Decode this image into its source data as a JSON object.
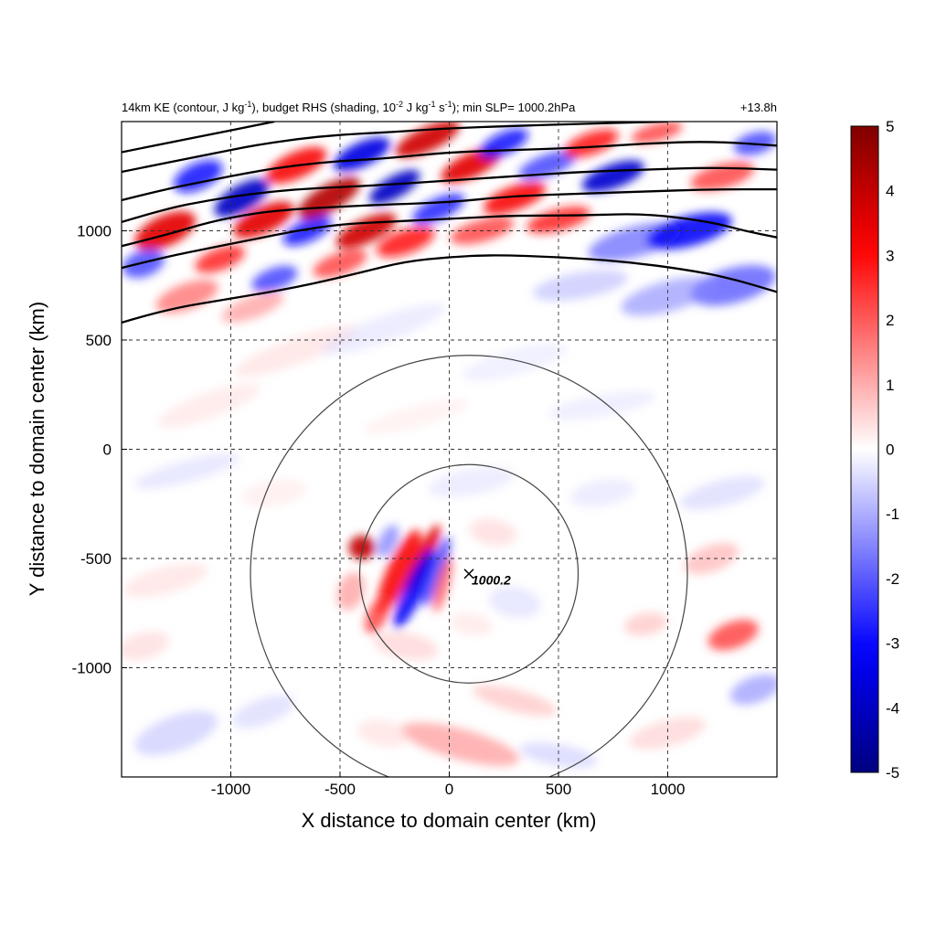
{
  "chart_data": {
    "type": "heatmap",
    "title": {
      "part1": "14km KE (contour, J kg",
      "sup1": "-1",
      "part2": "), budget RHS (shading, 10",
      "sup2": "-2",
      "part3": " J kg",
      "sup3": "-1",
      "part4": " s",
      "sup4": "-1",
      "part5": "); min SLP= 1000.2hPa"
    },
    "forecast_time": "+13.8h",
    "xlabel": "X distance to domain center (km)",
    "ylabel": "Y distance to domain center (km)",
    "xlim": [
      -1500,
      1500
    ],
    "ylim": [
      -1500,
      1500
    ],
    "x_ticks": [
      -1000,
      -500,
      0,
      500,
      1000
    ],
    "y_ticks": [
      -1000,
      -500,
      0,
      500,
      1000
    ],
    "grid": true,
    "colorbar": {
      "min": -5,
      "max": 5,
      "ticks": [
        5,
        4,
        3,
        2,
        1,
        0,
        -1,
        -2,
        -3,
        -4,
        -5
      ],
      "colormap": [
        "#000080",
        "#0000ff",
        "#ffffff",
        "#ff0000",
        "#800000"
      ]
    },
    "storm_center": {
      "x": 90,
      "y": -570,
      "min_slp_label": "1000.2"
    },
    "range_rings_km": [
      500,
      1000
    ],
    "ke_contours": [
      [
        [
          -1500,
          580
        ],
        [
          -1300,
          640
        ],
        [
          -1000,
          690
        ],
        [
          -700,
          740
        ],
        [
          -400,
          810
        ],
        [
          -200,
          860
        ],
        [
          0,
          880
        ],
        [
          200,
          890
        ],
        [
          500,
          880
        ],
        [
          800,
          860
        ],
        [
          1100,
          820
        ],
        [
          1300,
          780
        ],
        [
          1500,
          720
        ]
      ],
      [
        [
          -1500,
          830
        ],
        [
          -1300,
          880
        ],
        [
          -1100,
          920
        ],
        [
          -900,
          960
        ],
        [
          -700,
          1000
        ],
        [
          -500,
          1030
        ],
        [
          -300,
          1040
        ],
        [
          -100,
          1050
        ],
        [
          100,
          1060
        ],
        [
          300,
          1070
        ],
        [
          600,
          1070
        ],
        [
          900,
          1080
        ],
        [
          1200,
          1040
        ],
        [
          1350,
          1000
        ],
        [
          1500,
          970
        ]
      ],
      [
        [
          -1500,
          930
        ],
        [
          -1300,
          980
        ],
        [
          -1100,
          1040
        ],
        [
          -900,
          1080
        ],
        [
          -700,
          1100
        ],
        [
          -500,
          1110
        ],
        [
          -300,
          1120
        ],
        [
          0,
          1130
        ],
        [
          300,
          1160
        ],
        [
          600,
          1170
        ],
        [
          900,
          1180
        ],
        [
          1200,
          1190
        ],
        [
          1500,
          1190
        ]
      ],
      [
        [
          -1500,
          1040
        ],
        [
          -1300,
          1100
        ],
        [
          -1100,
          1140
        ],
        [
          -900,
          1170
        ],
        [
          -700,
          1190
        ],
        [
          -500,
          1200
        ],
        [
          -300,
          1210
        ],
        [
          0,
          1230
        ],
        [
          300,
          1250
        ],
        [
          600,
          1270
        ],
        [
          900,
          1280
        ],
        [
          1200,
          1290
        ],
        [
          1500,
          1280
        ]
      ],
      [
        [
          -1500,
          1140
        ],
        [
          -1300,
          1190
        ],
        [
          -1100,
          1230
        ],
        [
          -900,
          1270
        ],
        [
          -700,
          1300
        ],
        [
          -500,
          1320
        ],
        [
          -300,
          1330
        ],
        [
          0,
          1360
        ],
        [
          300,
          1370
        ],
        [
          600,
          1380
        ],
        [
          900,
          1400
        ],
        [
          1200,
          1410
        ],
        [
          1500,
          1390
        ]
      ],
      [
        [
          -1500,
          1270
        ],
        [
          -1300,
          1310
        ],
        [
          -1100,
          1350
        ],
        [
          -900,
          1390
        ],
        [
          -700,
          1420
        ],
        [
          -500,
          1440
        ],
        [
          -300,
          1450
        ],
        [
          0,
          1470
        ],
        [
          300,
          1480
        ],
        [
          600,
          1490
        ],
        [
          1000,
          1500
        ]
      ],
      [
        [
          -1500,
          1360
        ],
        [
          -1300,
          1400
        ],
        [
          -1100,
          1440
        ],
        [
          -900,
          1480
        ],
        [
          -800,
          1500
        ]
      ]
    ],
    "anomaly_blobs": [
      {
        "x": -1300,
        "y": 1000,
        "rx": 150,
        "ry": 70,
        "v": 3.5,
        "rot": -25
      },
      {
        "x": -1150,
        "y": 1250,
        "rx": 120,
        "ry": 60,
        "v": -3,
        "rot": -25
      },
      {
        "x": -1050,
        "y": 870,
        "rx": 120,
        "ry": 50,
        "v": 2.8,
        "rot": -20
      },
      {
        "x": -950,
        "y": 1150,
        "rx": 140,
        "ry": 60,
        "v": -4,
        "rot": -30
      },
      {
        "x": -850,
        "y": 1050,
        "rx": 150,
        "ry": 60,
        "v": 3.5,
        "rot": -25
      },
      {
        "x": -800,
        "y": 780,
        "rx": 110,
        "ry": 50,
        "v": -2.5,
        "rot": -20
      },
      {
        "x": -700,
        "y": 1300,
        "rx": 150,
        "ry": 60,
        "v": 3.2,
        "rot": -25
      },
      {
        "x": -650,
        "y": 1000,
        "rx": 120,
        "ry": 50,
        "v": -3,
        "rot": -25
      },
      {
        "x": -550,
        "y": 1150,
        "rx": 160,
        "ry": 60,
        "v": 4.2,
        "rot": -30
      },
      {
        "x": -500,
        "y": 850,
        "rx": 130,
        "ry": 50,
        "v": 2.5,
        "rot": -20
      },
      {
        "x": -400,
        "y": 1350,
        "rx": 140,
        "ry": 55,
        "v": -3.5,
        "rot": -25
      },
      {
        "x": -380,
        "y": 1000,
        "rx": 150,
        "ry": 55,
        "v": 3.8,
        "rot": -25
      },
      {
        "x": -250,
        "y": 1200,
        "rx": 130,
        "ry": 50,
        "v": -4,
        "rot": -30
      },
      {
        "x": -200,
        "y": 950,
        "rx": 140,
        "ry": 55,
        "v": 3,
        "rot": -20
      },
      {
        "x": -100,
        "y": 1420,
        "rx": 160,
        "ry": 55,
        "v": 3.8,
        "rot": -25
      },
      {
        "x": -50,
        "y": 1100,
        "rx": 130,
        "ry": 50,
        "v": -2.8,
        "rot": -25
      },
      {
        "x": 100,
        "y": 1300,
        "rx": 150,
        "ry": 55,
        "v": 3.5,
        "rot": -25
      },
      {
        "x": 150,
        "y": 1000,
        "rx": 150,
        "ry": 50,
        "v": 2.5,
        "rot": -15
      },
      {
        "x": 250,
        "y": 1400,
        "rx": 120,
        "ry": 50,
        "v": -3,
        "rot": -25
      },
      {
        "x": 300,
        "y": 1150,
        "rx": 150,
        "ry": 55,
        "v": 3.2,
        "rot": -20
      },
      {
        "x": 450,
        "y": 1300,
        "rx": 140,
        "ry": 50,
        "v": -2.5,
        "rot": -20
      },
      {
        "x": 500,
        "y": 1050,
        "rx": 150,
        "ry": 50,
        "v": 2.8,
        "rot": -15
      },
      {
        "x": 650,
        "y": 1400,
        "rx": 130,
        "ry": 50,
        "v": 3,
        "rot": -20
      },
      {
        "x": 750,
        "y": 1250,
        "rx": 150,
        "ry": 55,
        "v": -3.8,
        "rot": -20
      },
      {
        "x": 850,
        "y": 950,
        "rx": 220,
        "ry": 70,
        "v": -2,
        "rot": -15
      },
      {
        "x": 950,
        "y": 1450,
        "rx": 120,
        "ry": 40,
        "v": 2.5,
        "rot": -15
      },
      {
        "x": 1100,
        "y": 1000,
        "rx": 200,
        "ry": 70,
        "v": -3.2,
        "rot": -15
      },
      {
        "x": 1250,
        "y": 1250,
        "rx": 150,
        "ry": 55,
        "v": 2.5,
        "rot": -15
      },
      {
        "x": 1300,
        "y": 750,
        "rx": 200,
        "ry": 80,
        "v": -2.2,
        "rot": -15
      },
      {
        "x": 1400,
        "y": 1400,
        "rx": 100,
        "ry": 50,
        "v": -2.5,
        "rot": -15
      },
      {
        "x": 1000,
        "y": 700,
        "rx": 220,
        "ry": 70,
        "v": -1.5,
        "rot": -15
      },
      {
        "x": 600,
        "y": 750,
        "rx": 220,
        "ry": 60,
        "v": -1,
        "rot": -10
      },
      {
        "x": -1200,
        "y": 700,
        "rx": 150,
        "ry": 60,
        "v": 2,
        "rot": -20
      },
      {
        "x": -900,
        "y": 650,
        "rx": 150,
        "ry": 50,
        "v": 1.5,
        "rot": -20
      },
      {
        "x": -1400,
        "y": 850,
        "rx": 100,
        "ry": 60,
        "v": -2.5,
        "rot": -20
      },
      {
        "x": -700,
        "y": 450,
        "rx": 300,
        "ry": 60,
        "v": 0.6,
        "rot": -20
      },
      {
        "x": -300,
        "y": 550,
        "rx": 300,
        "ry": 60,
        "v": -0.5,
        "rot": -20
      },
      {
        "x": 300,
        "y": 400,
        "rx": 250,
        "ry": 60,
        "v": -0.4,
        "rot": -15
      },
      {
        "x": -1100,
        "y": 200,
        "rx": 250,
        "ry": 60,
        "v": 0.5,
        "rot": -20
      },
      {
        "x": -1200,
        "y": -100,
        "rx": 250,
        "ry": 50,
        "v": -0.6,
        "rot": -15
      },
      {
        "x": -1300,
        "y": -600,
        "rx": 200,
        "ry": 60,
        "v": 0.6,
        "rot": -15
      },
      {
        "x": -1250,
        "y": -1300,
        "rx": 200,
        "ry": 80,
        "v": -0.9,
        "rot": -20
      },
      {
        "x": -1400,
        "y": -900,
        "rx": 120,
        "ry": 60,
        "v": 0.7,
        "rot": -15
      },
      {
        "x": -850,
        "y": -1200,
        "rx": 150,
        "ry": 60,
        "v": -0.7,
        "rot": -20
      },
      {
        "x": 1300,
        "y": -850,
        "rx": 120,
        "ry": 60,
        "v": 2.5,
        "rot": -20
      },
      {
        "x": 1200,
        "y": -500,
        "rx": 130,
        "ry": 60,
        "v": 1.2,
        "rot": -20
      },
      {
        "x": 1400,
        "y": -1100,
        "rx": 120,
        "ry": 60,
        "v": -1.5,
        "rot": -20
      },
      {
        "x": 1250,
        "y": -200,
        "rx": 200,
        "ry": 60,
        "v": -0.7,
        "rot": -15
      },
      {
        "x": 1000,
        "y": -1300,
        "rx": 180,
        "ry": 60,
        "v": 0.8,
        "rot": -15
      },
      {
        "x": 900,
        "y": -800,
        "rx": 100,
        "ry": 50,
        "v": 1,
        "rot": -10
      },
      {
        "x": 50,
        "y": -1350,
        "rx": 280,
        "ry": 70,
        "v": 1.5,
        "rot": 15
      },
      {
        "x": 300,
        "y": -1150,
        "rx": 200,
        "ry": 50,
        "v": 1,
        "rot": 15
      },
      {
        "x": 500,
        "y": -1400,
        "rx": 180,
        "ry": 50,
        "v": -0.8,
        "rot": 10
      },
      {
        "x": -300,
        "y": -1300,
        "rx": 120,
        "ry": 60,
        "v": 0.6,
        "rot": 10
      },
      {
        "x": 700,
        "y": -200,
        "rx": 150,
        "ry": 60,
        "v": -0.5,
        "rot": -10
      },
      {
        "x": -800,
        "y": -200,
        "rx": 150,
        "ry": 60,
        "v": 0.4,
        "rot": -10
      },
      {
        "x": -400,
        "y": -450,
        "rx": 60,
        "ry": 55,
        "v": 4,
        "rot": 0
      },
      {
        "x": -230,
        "y": -560,
        "rx": 55,
        "ry": 210,
        "v": 3.2,
        "rot": 25
      },
      {
        "x": -120,
        "y": -500,
        "rx": 35,
        "ry": 170,
        "v": 3.5,
        "rot": 25
      },
      {
        "x": -160,
        "y": -640,
        "rx": 45,
        "ry": 200,
        "v": -3.2,
        "rot": 25
      },
      {
        "x": -60,
        "y": -560,
        "rx": 35,
        "ry": 170,
        "v": -2.5,
        "rot": 20
      },
      {
        "x": -30,
        "y": -620,
        "rx": 30,
        "ry": 130,
        "v": 2.2,
        "rot": 15
      },
      {
        "x": -330,
        "y": -760,
        "rx": 45,
        "ry": 90,
        "v": 2.5,
        "rot": 25
      },
      {
        "x": -280,
        "y": -420,
        "rx": 40,
        "ry": 80,
        "v": -1.8,
        "rot": 25
      },
      {
        "x": 200,
        "y": -380,
        "rx": 110,
        "ry": 60,
        "v": 0.7,
        "rot": 10
      },
      {
        "x": 300,
        "y": -700,
        "rx": 120,
        "ry": 70,
        "v": -0.6,
        "rot": 10
      },
      {
        "x": -200,
        "y": -900,
        "rx": 150,
        "ry": 60,
        "v": 0.8,
        "rot": 10
      },
      {
        "x": 100,
        "y": -800,
        "rx": 100,
        "ry": 50,
        "v": 0.5,
        "rot": 10
      },
      {
        "x": -450,
        "y": -650,
        "rx": 60,
        "ry": 90,
        "v": 1.5,
        "rot": 20
      },
      {
        "x": 100,
        "y": -150,
        "rx": 200,
        "ry": 60,
        "v": -0.5,
        "rot": -10
      },
      {
        "x": -150,
        "y": 150,
        "rx": 250,
        "ry": 50,
        "v": 0.35,
        "rot": -15
      },
      {
        "x": 700,
        "y": 200,
        "rx": 250,
        "ry": 50,
        "v": -0.45,
        "rot": -10
      }
    ]
  }
}
